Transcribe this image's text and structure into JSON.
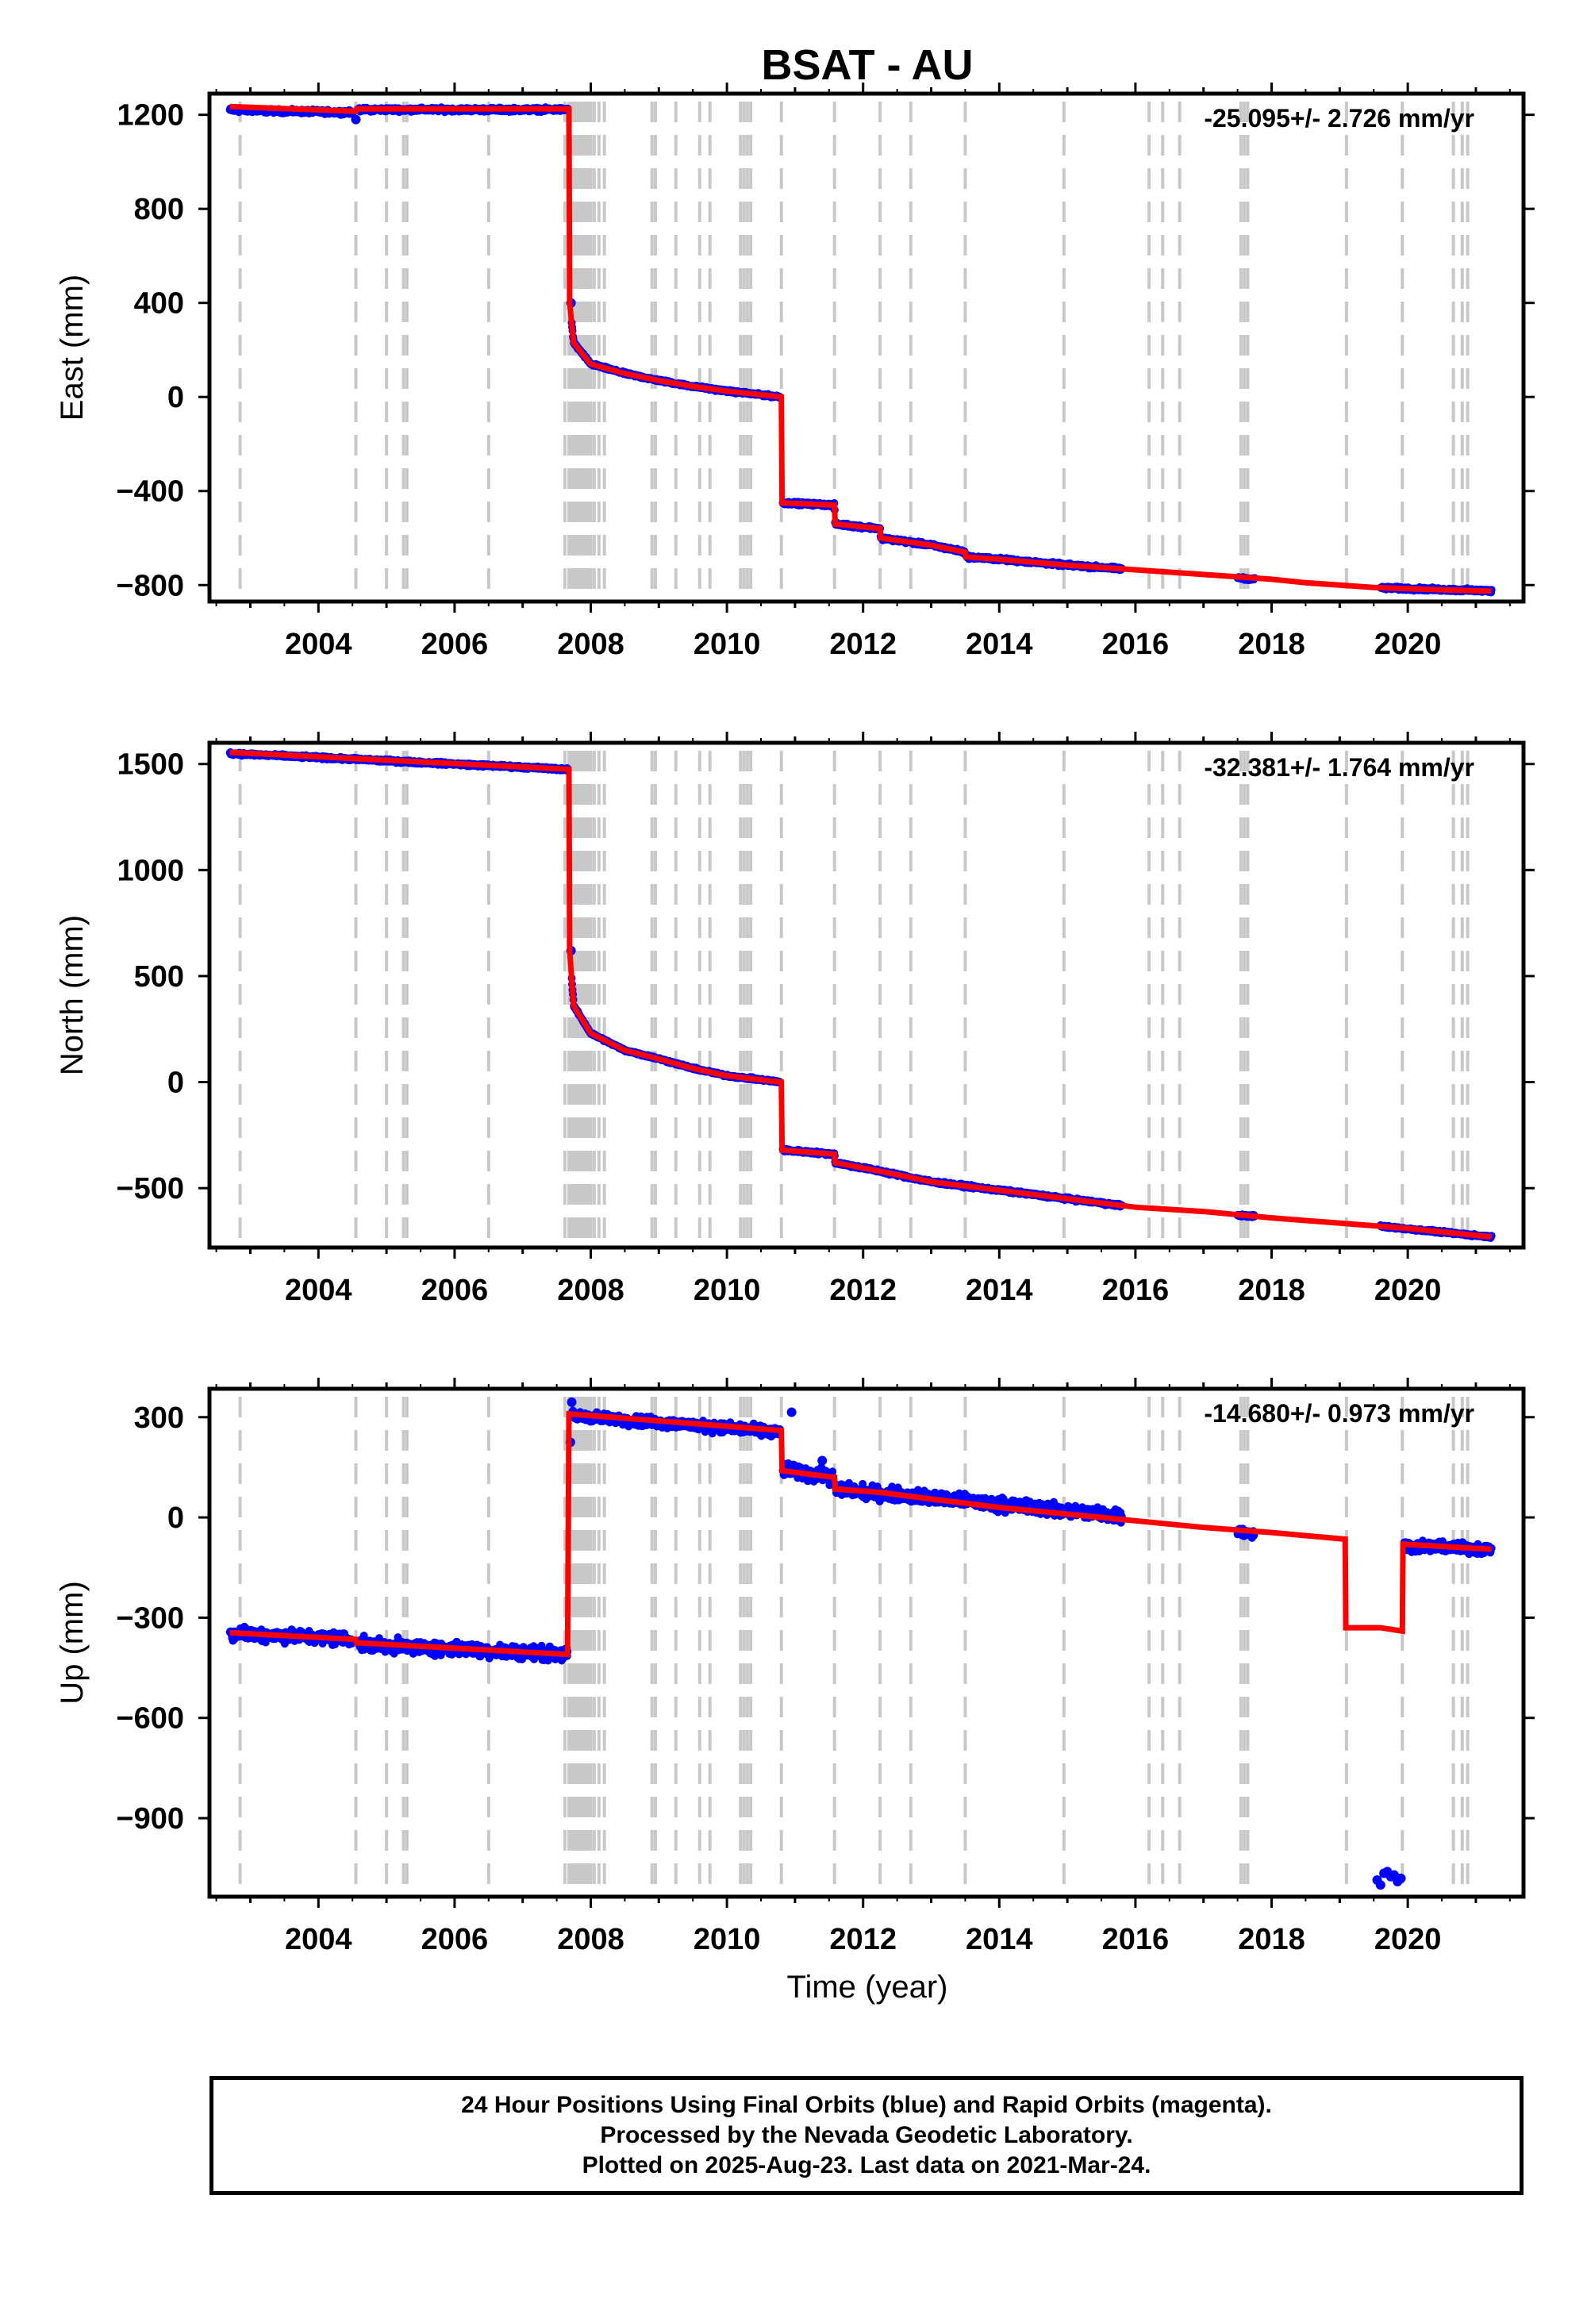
{
  "chart_data": {
    "type": "scatter",
    "title": "BSAT - AU",
    "xlabel": "Time (year)",
    "xlim": [
      2002.4,
      2021.7
    ],
    "x_ticks": [
      2004,
      2006,
      2008,
      2010,
      2012,
      2014,
      2016,
      2018,
      2020
    ],
    "x_tick_labels": [
      "2004",
      "2006",
      "2008",
      "2010",
      "2012",
      "2014",
      "2016",
      "2018",
      "2020"
    ],
    "event_lines": [
      2002.85,
      2004.55,
      2005.0,
      2005.25,
      2005.3,
      2006.5,
      2007.62,
      2007.68,
      2007.72,
      2007.76,
      2007.8,
      2007.84,
      2007.88,
      2007.92,
      2007.96,
      2008.0,
      2008.05,
      2008.12,
      2008.2,
      2008.9,
      2008.95,
      2009.25,
      2009.6,
      2009.75,
      2010.2,
      2010.25,
      2010.3,
      2010.35,
      2010.8,
      2011.58,
      2012.25,
      2012.7,
      2013.5,
      2014.95,
      2016.2,
      2016.4,
      2016.65,
      2017.55,
      2017.6,
      2017.65,
      2019.1,
      2019.92,
      2020.67,
      2020.8,
      2020.88
    ],
    "legend": "none",
    "grid": false,
    "colors": {
      "observed": "#0000ff",
      "model": "#ff0000",
      "event_line": "#c8c8c8"
    },
    "panels": [
      {
        "name": "East",
        "ylabel": "East (mm)",
        "ylim": [
          -870,
          1290
        ],
        "y_ticks": [
          -800,
          -400,
          0,
          400,
          800,
          1200
        ],
        "y_tick_labels": [
          "−800",
          "−400",
          "0",
          "400",
          "800",
          "1200"
        ],
        "rate_label": "-25.095+/- 2.726 mm/yr",
        "model": [
          [
            2002.7,
            1235
          ],
          [
            2004.55,
            1215
          ],
          [
            2004.56,
            1225
          ],
          [
            2007.68,
            1225
          ],
          [
            2007.69,
            400
          ],
          [
            2007.75,
            230
          ],
          [
            2008.0,
            140
          ],
          [
            2008.5,
            100
          ],
          [
            2009.0,
            70
          ],
          [
            2009.5,
            45
          ],
          [
            2010.0,
            25
          ],
          [
            2010.8,
            0
          ],
          [
            2010.81,
            -450
          ],
          [
            2011.58,
            -460
          ],
          [
            2011.59,
            -540
          ],
          [
            2012.25,
            -560
          ],
          [
            2012.26,
            -600
          ],
          [
            2013.0,
            -630
          ],
          [
            2013.5,
            -660
          ],
          [
            2013.51,
            -680
          ],
          [
            2014.0,
            -690
          ],
          [
            2015.0,
            -715
          ],
          [
            2016.0,
            -735
          ],
          [
            2017.0,
            -755
          ],
          [
            2018.0,
            -775
          ],
          [
            2018.5,
            -790
          ],
          [
            2019.0,
            -800
          ],
          [
            2019.5,
            -810
          ],
          [
            2020.0,
            -815
          ],
          [
            2020.5,
            -820
          ],
          [
            2021.23,
            -825
          ]
        ],
        "obs_segments": [
          {
            "t0": 2002.7,
            "t1": 2004.5,
            "v0": 1220,
            "v1": 1210,
            "scatter": 12
          },
          {
            "t0": 2004.6,
            "t1": 2007.66,
            "v0": 1222,
            "v1": 1222,
            "scatter": 12
          },
          {
            "t0": 2007.72,
            "t1": 2010.78,
            "curve": "east_post2007",
            "scatter": 8
          },
          {
            "t0": 2010.82,
            "t1": 2015.8,
            "curve": "east_post2010",
            "scatter": 10
          },
          {
            "t0": 2017.5,
            "t1": 2017.75,
            "v0": -770,
            "v1": -775,
            "scatter": 8
          },
          {
            "t0": 2019.6,
            "t1": 2021.23,
            "v0": -812,
            "v1": -825,
            "scatter": 10
          }
        ],
        "obs_extra": [
          [
            2007.71,
            400
          ],
          [
            2004.55,
            1180
          ]
        ]
      },
      {
        "name": "North",
        "ylabel": "North (mm)",
        "ylim": [
          -780,
          1600
        ],
        "y_ticks": [
          -500,
          0,
          500,
          1000,
          1500
        ],
        "y_tick_labels": [
          "−500",
          "0",
          "500",
          "1000",
          "1500"
        ],
        "rate_label": "-32.381+/- 1.764 mm/yr",
        "model": [
          [
            2002.7,
            1555
          ],
          [
            2007.68,
            1475
          ],
          [
            2007.69,
            620
          ],
          [
            2007.75,
            360
          ],
          [
            2008.0,
            230
          ],
          [
            2008.5,
            150
          ],
          [
            2009.0,
            110
          ],
          [
            2009.5,
            65
          ],
          [
            2010.0,
            30
          ],
          [
            2010.8,
            0
          ],
          [
            2010.81,
            -320
          ],
          [
            2011.58,
            -340
          ],
          [
            2011.59,
            -380
          ],
          [
            2012.25,
            -420
          ],
          [
            2013.0,
            -470
          ],
          [
            2013.5,
            -490
          ],
          [
            2014.0,
            -510
          ],
          [
            2015.0,
            -550
          ],
          [
            2016.0,
            -590
          ],
          [
            2017.0,
            -610
          ],
          [
            2018.0,
            -640
          ],
          [
            2019.0,
            -665
          ],
          [
            2020.0,
            -690
          ],
          [
            2021.23,
            -730
          ]
        ],
        "obs_segments": [
          {
            "t0": 2002.7,
            "t1": 2007.66,
            "v0": 1550,
            "v1": 1475,
            "scatter": 10
          },
          {
            "t0": 2007.72,
            "t1": 2010.78,
            "curve": "north_post2007",
            "scatter": 8
          },
          {
            "t0": 2010.82,
            "t1": 2015.8,
            "curve": "north_post2010",
            "scatter": 10
          },
          {
            "t0": 2017.5,
            "t1": 2017.75,
            "v0": -628,
            "v1": -632,
            "scatter": 8
          },
          {
            "t0": 2019.6,
            "t1": 2021.23,
            "v0": -680,
            "v1": -730,
            "scatter": 8
          }
        ],
        "obs_extra": [
          [
            2007.71,
            620
          ]
        ]
      },
      {
        "name": "Up",
        "ylabel": "Up (mm)",
        "ylim": [
          -1135,
          385
        ],
        "y_ticks": [
          -900,
          -600,
          -300,
          0,
          300
        ],
        "y_tick_labels": [
          "−900",
          "−600",
          "−300",
          "0",
          "300"
        ],
        "rate_label": "-14.680+/- 0.973 mm/yr",
        "model": [
          [
            2002.7,
            -345
          ],
          [
            2004.55,
            -365
          ],
          [
            2004.56,
            -375
          ],
          [
            2007.66,
            -410
          ],
          [
            2007.68,
            310
          ],
          [
            2008.0,
            305
          ],
          [
            2010.8,
            260
          ],
          [
            2010.81,
            140
          ],
          [
            2011.58,
            120
          ],
          [
            2011.59,
            85
          ],
          [
            2012.25,
            75
          ],
          [
            2013.0,
            55
          ],
          [
            2014.0,
            30
          ],
          [
            2015.0,
            10
          ],
          [
            2016.0,
            -10
          ],
          [
            2017.0,
            -30
          ],
          [
            2018.0,
            -45
          ],
          [
            2019.08,
            -65
          ],
          [
            2019.09,
            -330
          ],
          [
            2019.6,
            -330
          ],
          [
            2019.92,
            -340
          ],
          [
            2019.93,
            -80
          ],
          [
            2021.23,
            -95
          ]
        ],
        "obs_segments": [
          {
            "t0": 2002.7,
            "t1": 2004.5,
            "v0": -345,
            "v1": -365,
            "scatter": 28
          },
          {
            "t0": 2004.6,
            "t1": 2007.66,
            "v0": -380,
            "v1": -410,
            "scatter": 28
          },
          {
            "t0": 2007.72,
            "t1": 2010.78,
            "v0": 305,
            "v1": 255,
            "scatter": 22
          },
          {
            "t0": 2010.82,
            "t1": 2011.55,
            "v0": 145,
            "v1": 120,
            "scatter": 30
          },
          {
            "t0": 2011.6,
            "t1": 2015.8,
            "v0": 85,
            "v1": 5,
            "scatter": 28
          },
          {
            "t0": 2017.5,
            "t1": 2017.75,
            "v0": -40,
            "v1": -50,
            "scatter": 20
          },
          {
            "t0": 2019.95,
            "t1": 2021.23,
            "v0": -85,
            "v1": -95,
            "scatter": 22
          }
        ],
        "obs_extra": [
          [
            2007.7,
            225
          ],
          [
            2007.72,
            345
          ],
          [
            2010.95,
            315
          ],
          [
            2011.4,
            170
          ],
          [
            2019.55,
            -1085
          ],
          [
            2019.6,
            -1100
          ],
          [
            2019.65,
            -1065
          ],
          [
            2019.7,
            -1060
          ],
          [
            2019.75,
            -1075
          ],
          [
            2019.8,
            -1070
          ],
          [
            2019.85,
            -1090
          ],
          [
            2019.9,
            -1080
          ]
        ]
      }
    ]
  },
  "footer": {
    "line1": "24 Hour Positions Using Final Orbits (blue) and Rapid Orbits (magenta).",
    "line2": "Processed by the Nevada Geodetic Laboratory.",
    "line3": "Plotted on 2025-Aug-23. Last data on 2021-Mar-24."
  }
}
